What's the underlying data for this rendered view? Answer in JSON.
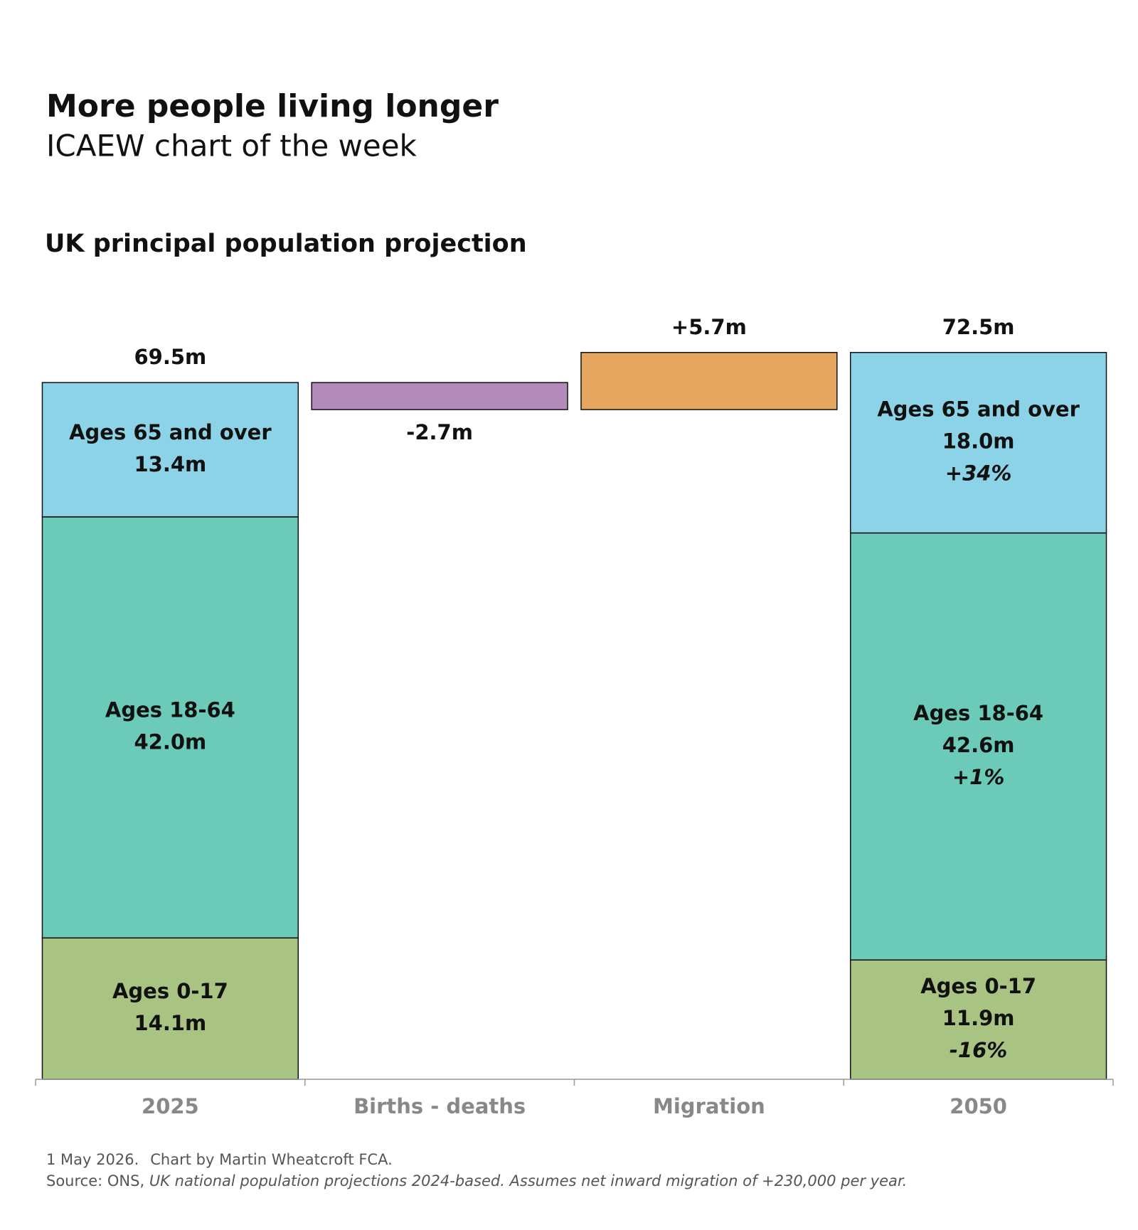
{
  "chart_data": {
    "type": "waterfall",
    "title": "More people living longer",
    "subtitle": "ICAEW chart of the week",
    "chart_title": "UK principal population projection",
    "categories": [
      "2025",
      "Births - deaths",
      "Migration",
      "2050"
    ],
    "series": [
      {
        "name": "Ages 0-17",
        "color": "#a9c382",
        "values": [
          14.1,
          null,
          null,
          11.9
        ],
        "value_labels": [
          "14.1m",
          null,
          null,
          "11.9m"
        ],
        "change_labels": [
          null,
          null,
          null,
          "-16%"
        ]
      },
      {
        "name": "Ages 18-64",
        "color": "#6ccab8",
        "values": [
          42.0,
          null,
          null,
          42.6
        ],
        "value_labels": [
          "42.0m",
          null,
          null,
          "42.6m"
        ],
        "change_labels": [
          null,
          null,
          null,
          "+1%"
        ]
      },
      {
        "name": "Ages 65 and over",
        "color": "#8dd3e8",
        "values": [
          13.4,
          null,
          null,
          18.0
        ],
        "value_labels": [
          "13.4m",
          null,
          null,
          "18.0m"
        ],
        "change_labels": [
          null,
          null,
          null,
          "+34%"
        ]
      }
    ],
    "changes": {
      "values": [
        null,
        -2.7,
        5.7,
        null
      ],
      "value_labels": [
        null,
        "-2.7m",
        "+5.7m",
        null
      ],
      "colors": [
        null,
        "#b28bbb",
        "#e5a660",
        null
      ]
    },
    "totals": {
      "values": [
        69.5,
        null,
        null,
        72.5
      ],
      "value_labels": [
        "69.5m",
        null,
        null,
        "72.5m"
      ]
    },
    "ylim": [
      0,
      80
    ],
    "notes": [
      "1 May 2026.",
      "Chart by Martin Wheatcroft FCA."
    ],
    "source_label": "Source: ONS,",
    "source_text": "UK national population projections 2024-based. Assumes net inward migration of +230,000 per year."
  }
}
